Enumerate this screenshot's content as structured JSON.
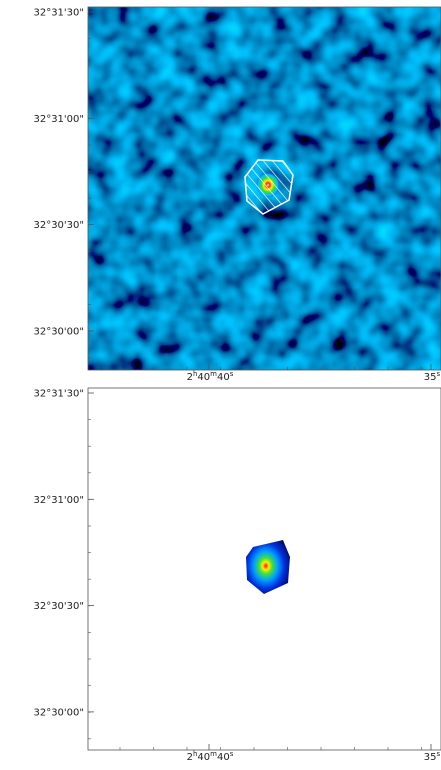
{
  "panels": [
    {
      "y_labels": [
        "32°31'30\"",
        "32°31'00\"",
        "32°30'30\"",
        "32°30'00\""
      ],
      "x_labels": [
        {
          "parts": [
            "2",
            "h",
            "40",
            "m",
            "40",
            "s"
          ]
        },
        {
          "parts": [
            "35",
            "s"
          ]
        }
      ]
    },
    {
      "y_labels": [
        "32°31'30\"",
        "32°31'00\"",
        "32°30'30\"",
        "32°30'00\""
      ],
      "x_labels": [
        {
          "parts": [
            "2",
            "h",
            "40",
            "m",
            "40",
            "s"
          ]
        },
        {
          "parts": [
            "35",
            "s"
          ]
        }
      ]
    }
  ]
}
